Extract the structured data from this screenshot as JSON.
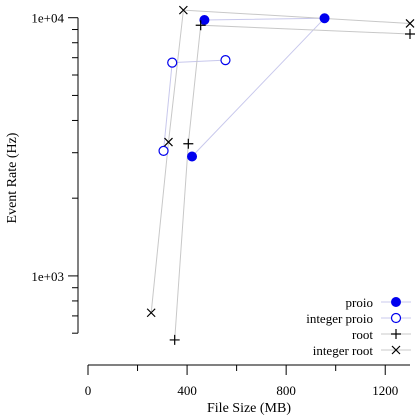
{
  "chart_data": {
    "type": "scatter",
    "title": "",
    "xlabel": "File Size (MB)",
    "ylabel": "Event Rate (Hz)",
    "xlim": [
      0,
      1300
    ],
    "ylim": [
      540,
      11200
    ],
    "yscale": "log",
    "x_ticks": [
      {
        "value": 0,
        "label": "0"
      },
      {
        "value": 400,
        "label": "400"
      },
      {
        "value": 800,
        "label": "800"
      },
      {
        "value": 1200,
        "label": "1200"
      }
    ],
    "x_minor_ticks": [
      200,
      600,
      1000
    ],
    "y_ticks": [
      {
        "value": 1000,
        "label": "1e+03"
      },
      {
        "value": 10000,
        "label": "1e+04"
      }
    ],
    "y_minor_ticks": [
      600,
      700,
      800,
      900,
      2000,
      3000,
      4000,
      5000,
      6000,
      7000,
      8000,
      9000
    ],
    "grid": false,
    "legend_position": "bottom-right",
    "series": [
      {
        "name": "proio",
        "marker": "filled-circle",
        "color": "#0000ee",
        "line_color": "#c8c8ec",
        "points": [
          [
            470,
            9800
          ],
          [
            955,
            9950
          ],
          [
            420,
            2900
          ]
        ]
      },
      {
        "name": "integer proio",
        "marker": "open-circle",
        "color": "#0000ee",
        "line_color": "#c8c8ec",
        "points": [
          [
            555,
            6850
          ],
          [
            340,
            6700
          ],
          [
            305,
            3050
          ]
        ]
      },
      {
        "name": "root",
        "marker": "plus",
        "color": "#000000",
        "line_color": "#c8c8c8",
        "points": [
          [
            1300,
            8650
          ],
          [
            455,
            9350
          ],
          [
            405,
            3250
          ],
          [
            350,
            565
          ]
        ]
      },
      {
        "name": "integer root",
        "marker": "cross",
        "color": "#000000",
        "line_color": "#c8c8c8",
        "points": [
          [
            1300,
            9500
          ],
          [
            385,
            10700
          ],
          [
            325,
            3300
          ],
          [
            255,
            720
          ]
        ]
      }
    ]
  }
}
